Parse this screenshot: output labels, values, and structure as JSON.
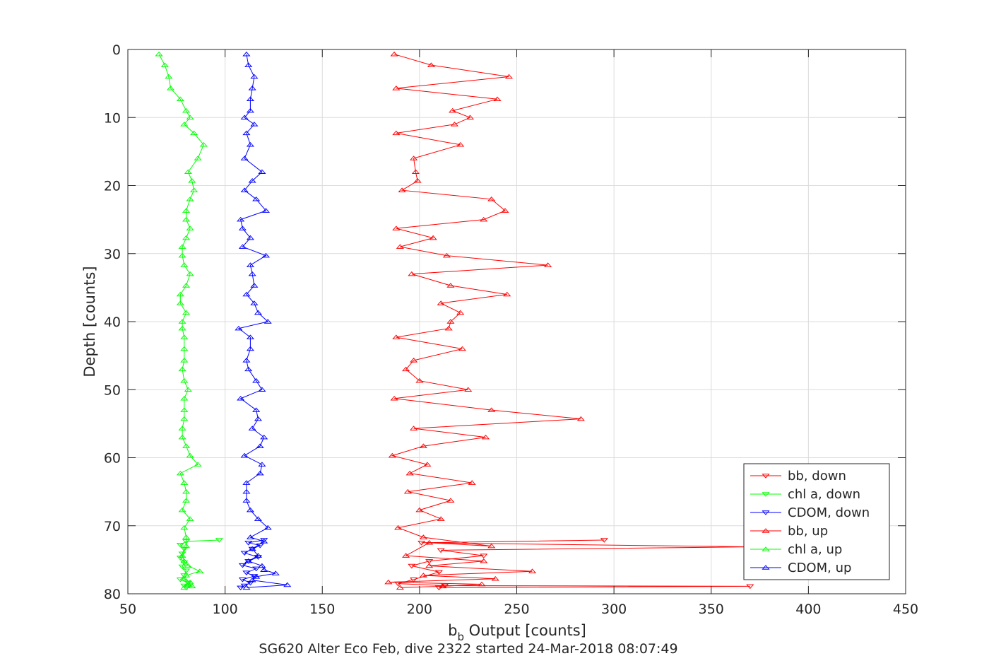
{
  "chart_data": {
    "type": "line",
    "title": "",
    "footer": "SG620 Alter Eco Feb, dive 2322 started 24-Mar-2018 08:07:49",
    "xlabel": {
      "base": "b",
      "subscript": "b",
      "rest": " Output [counts]"
    },
    "ylabel": "Depth [counts]",
    "xlim": [
      50,
      450
    ],
    "ylim": [
      0,
      80
    ],
    "y_reversed": true,
    "xticks": [
      50,
      100,
      150,
      200,
      250,
      300,
      350,
      400,
      450
    ],
    "yticks": [
      0,
      10,
      20,
      30,
      40,
      50,
      60,
      70,
      80
    ],
    "grid": true,
    "legend_position": "bottom-right",
    "series": [
      {
        "name": "bb, down",
        "color": "#ff0000",
        "marker": "triangle-down",
        "points": [
          [
            295,
            72.1
          ],
          [
            201,
            72.5
          ],
          [
            370,
            73.1
          ],
          [
            211,
            73.6
          ],
          [
            233,
            74.4
          ],
          [
            205,
            75.2
          ],
          [
            196,
            75.9
          ],
          [
            210,
            76.8
          ],
          [
            197,
            77.9
          ],
          [
            189,
            78.5
          ],
          [
            213,
            78.8
          ],
          [
            370,
            78.9
          ],
          [
            210,
            79.1
          ]
        ]
      },
      {
        "name": "chl a, down",
        "color": "#00ff00",
        "marker": "triangle-down",
        "points": [
          [
            97,
            72.1
          ],
          [
            80,
            72.3
          ],
          [
            77,
            72.8
          ],
          [
            79,
            73.4
          ],
          [
            78,
            74.1
          ],
          [
            77,
            74.7
          ],
          [
            79,
            75.4
          ],
          [
            78,
            76.0
          ],
          [
            80,
            76.6
          ],
          [
            79,
            77.3
          ],
          [
            77,
            77.9
          ],
          [
            81,
            78.4
          ],
          [
            79,
            78.8
          ],
          [
            80,
            79.1
          ]
        ]
      },
      {
        "name": "CDOM, down",
        "color": "#0000ff",
        "marker": "triangle-down",
        "points": [
          [
            120,
            72.1
          ],
          [
            112,
            72.5
          ],
          [
            118,
            72.9
          ],
          [
            114,
            73.4
          ],
          [
            110,
            74.0
          ],
          [
            117,
            74.6
          ],
          [
            112,
            75.2
          ],
          [
            109,
            75.8
          ],
          [
            116,
            76.3
          ],
          [
            111,
            76.9
          ],
          [
            115,
            77.4
          ],
          [
            109,
            77.9
          ],
          [
            113,
            78.4
          ],
          [
            110,
            78.8
          ],
          [
            108,
            79.1
          ]
        ]
      },
      {
        "name": "bb, up",
        "color": "#ff0000",
        "marker": "triangle-up",
        "points": [
          [
            187,
            0.7
          ],
          [
            206,
            2.3
          ],
          [
            246,
            4.0
          ],
          [
            188,
            5.7
          ],
          [
            240,
            7.3
          ],
          [
            217,
            9.0
          ],
          [
            226,
            10.0
          ],
          [
            218,
            11.0
          ],
          [
            188,
            12.3
          ],
          [
            221,
            14.0
          ],
          [
            197,
            16.0
          ],
          [
            198,
            18.0
          ],
          [
            199,
            19.3
          ],
          [
            191,
            20.7
          ],
          [
            237,
            22.0
          ],
          [
            244,
            23.7
          ],
          [
            233,
            25.0
          ],
          [
            188,
            26.3
          ],
          [
            207,
            27.7
          ],
          [
            190,
            29.0
          ],
          [
            214,
            30.3
          ],
          [
            266,
            31.7
          ],
          [
            196,
            33.0
          ],
          [
            216,
            34.7
          ],
          [
            245,
            36.0
          ],
          [
            211,
            37.3
          ],
          [
            221,
            38.7
          ],
          [
            216,
            40.0
          ],
          [
            215,
            41.0
          ],
          [
            188,
            42.3
          ],
          [
            222,
            44.0
          ],
          [
            197,
            45.7
          ],
          [
            193,
            47.0
          ],
          [
            200,
            48.7
          ],
          [
            225,
            50.0
          ],
          [
            187,
            51.3
          ],
          [
            237,
            53.0
          ],
          [
            283,
            54.3
          ],
          [
            197,
            55.7
          ],
          [
            234,
            57.0
          ],
          [
            202,
            58.3
          ],
          [
            186,
            59.7
          ],
          [
            204,
            61.0
          ],
          [
            195,
            62.3
          ],
          [
            227,
            63.7
          ],
          [
            194,
            65.0
          ],
          [
            216,
            66.3
          ],
          [
            200,
            67.7
          ],
          [
            211,
            69.0
          ],
          [
            189,
            70.3
          ],
          [
            202,
            71.7
          ],
          [
            237,
            73.0
          ],
          [
            205,
            72.5
          ],
          [
            193,
            74.4
          ],
          [
            233,
            75.2
          ],
          [
            205,
            75.9
          ],
          [
            258,
            76.7
          ],
          [
            202,
            77.3
          ],
          [
            239,
            77.8
          ],
          [
            184,
            78.3
          ],
          [
            232,
            78.6
          ],
          [
            212,
            78.9
          ],
          [
            190,
            79.1
          ]
        ]
      },
      {
        "name": "chl a, up",
        "color": "#00ff00",
        "marker": "triangle-up",
        "points": [
          [
            66,
            0.7
          ],
          [
            69,
            2.3
          ],
          [
            71,
            4.0
          ],
          [
            72,
            5.7
          ],
          [
            77,
            7.3
          ],
          [
            80,
            9.0
          ],
          [
            82,
            10.0
          ],
          [
            79,
            11.0
          ],
          [
            84,
            12.3
          ],
          [
            89,
            14.0
          ],
          [
            86,
            16.0
          ],
          [
            81,
            18.0
          ],
          [
            83,
            19.3
          ],
          [
            84,
            20.7
          ],
          [
            82,
            22.0
          ],
          [
            80,
            23.7
          ],
          [
            80,
            25.0
          ],
          [
            82,
            26.3
          ],
          [
            80,
            27.7
          ],
          [
            78,
            29.0
          ],
          [
            78,
            30.3
          ],
          [
            79,
            31.7
          ],
          [
            82,
            33.0
          ],
          [
            80,
            34.7
          ],
          [
            77,
            36.0
          ],
          [
            77,
            37.3
          ],
          [
            80,
            38.7
          ],
          [
            78,
            40.0
          ],
          [
            78,
            41.0
          ],
          [
            79,
            42.3
          ],
          [
            79,
            44.0
          ],
          [
            79,
            45.7
          ],
          [
            78,
            47.0
          ],
          [
            79,
            48.7
          ],
          [
            81,
            50.0
          ],
          [
            79,
            51.3
          ],
          [
            79,
            53.0
          ],
          [
            79,
            54.3
          ],
          [
            78,
            55.7
          ],
          [
            78,
            57.0
          ],
          [
            80,
            58.3
          ],
          [
            82,
            59.7
          ],
          [
            86,
            61.0
          ],
          [
            77,
            62.3
          ],
          [
            79,
            63.7
          ],
          [
            80,
            65.0
          ],
          [
            80,
            66.3
          ],
          [
            78,
            67.7
          ],
          [
            82,
            69.0
          ],
          [
            79,
            70.3
          ],
          [
            80,
            71.7
          ],
          [
            80,
            73.0
          ],
          [
            78,
            74.4
          ],
          [
            79,
            75.2
          ],
          [
            81,
            75.9
          ],
          [
            87,
            76.7
          ],
          [
            80,
            77.3
          ],
          [
            79,
            77.8
          ],
          [
            82,
            78.3
          ],
          [
            81,
            78.6
          ],
          [
            83,
            78.9
          ],
          [
            79,
            79.1
          ]
        ]
      },
      {
        "name": "CDOM, up",
        "color": "#0000ff",
        "marker": "triangle-up",
        "points": [
          [
            111,
            0.7
          ],
          [
            112,
            2.3
          ],
          [
            115,
            4.0
          ],
          [
            114,
            5.7
          ],
          [
            113,
            7.3
          ],
          [
            113,
            9.0
          ],
          [
            110,
            10.0
          ],
          [
            115,
            11.0
          ],
          [
            111,
            12.3
          ],
          [
            113,
            14.0
          ],
          [
            110,
            16.0
          ],
          [
            119,
            18.0
          ],
          [
            114,
            19.3
          ],
          [
            110,
            20.7
          ],
          [
            116,
            22.0
          ],
          [
            121,
            23.7
          ],
          [
            108,
            25.0
          ],
          [
            109,
            26.3
          ],
          [
            113,
            27.7
          ],
          [
            109,
            29.0
          ],
          [
            121,
            30.3
          ],
          [
            113,
            31.7
          ],
          [
            114,
            33.0
          ],
          [
            115,
            34.7
          ],
          [
            111,
            36.0
          ],
          [
            115,
            37.3
          ],
          [
            117,
            38.7
          ],
          [
            122,
            40.0
          ],
          [
            107,
            41.0
          ],
          [
            113,
            42.3
          ],
          [
            113,
            44.0
          ],
          [
            111,
            45.7
          ],
          [
            112,
            47.0
          ],
          [
            116,
            48.7
          ],
          [
            119,
            50.0
          ],
          [
            108,
            51.3
          ],
          [
            116,
            53.0
          ],
          [
            117,
            54.3
          ],
          [
            114,
            55.7
          ],
          [
            120,
            57.0
          ],
          [
            118,
            58.3
          ],
          [
            110,
            59.7
          ],
          [
            119,
            61.0
          ],
          [
            118,
            62.3
          ],
          [
            111,
            63.7
          ],
          [
            111,
            65.0
          ],
          [
            111,
            66.3
          ],
          [
            113,
            67.7
          ],
          [
            117,
            69.0
          ],
          [
            122,
            70.3
          ],
          [
            113,
            71.7
          ],
          [
            120,
            72.3
          ],
          [
            114,
            73.4
          ],
          [
            117,
            74.4
          ],
          [
            112,
            75.2
          ],
          [
            119,
            75.9
          ],
          [
            120,
            76.5
          ],
          [
            126,
            77.0
          ],
          [
            116,
            77.5
          ],
          [
            114,
            78.0
          ],
          [
            132,
            78.7
          ],
          [
            111,
            79.1
          ]
        ]
      }
    ]
  }
}
